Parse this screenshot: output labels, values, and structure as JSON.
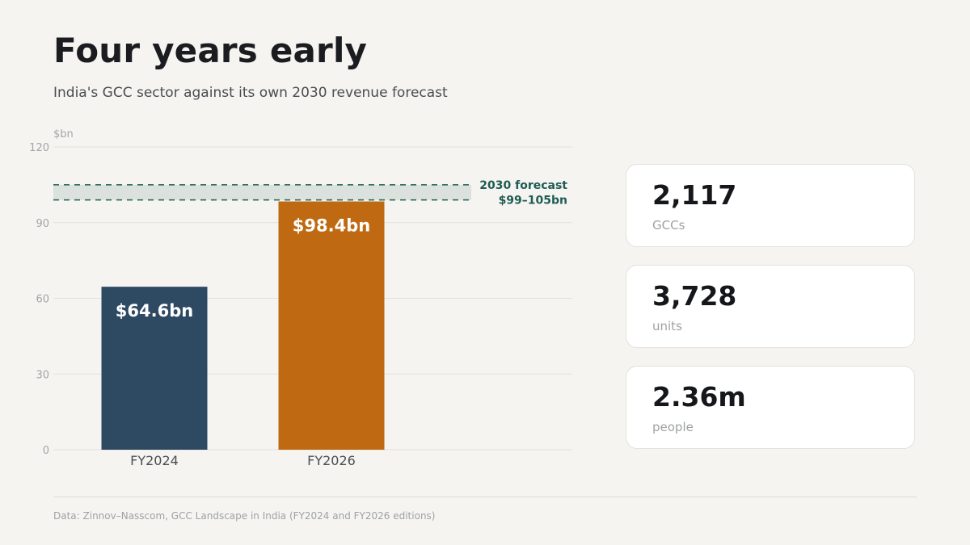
{
  "title": "Four years early",
  "subtitle": "India's GCC sector against its own 2030 revenue forecast",
  "chart_data": {
    "type": "bar",
    "unit_label": "$bn",
    "categories": [
      "FY2024",
      "FY2026"
    ],
    "values": [
      64.6,
      98.4
    ],
    "value_labels": [
      "$64.6bn",
      "$98.4bn"
    ],
    "bar_colors": [
      "#2e4a63",
      "#bf6a12"
    ],
    "ylim": [
      0,
      120
    ],
    "yticks": [
      0,
      30,
      60,
      90,
      120
    ],
    "grid": true,
    "forecast_band": {
      "low": 99,
      "high": 105,
      "label_line1": "2030 forecast",
      "label_line2": "$99–105bn",
      "color": "#1f5c55"
    }
  },
  "stats": [
    {
      "value": "2,117",
      "label": "GCCs"
    },
    {
      "value": "3,728",
      "label": "units"
    },
    {
      "value": "2.36m",
      "label": "people"
    }
  ],
  "source": "Data: Zinnov–Nasscom, GCC Landscape in India (FY2024 and FY2026 editions)"
}
